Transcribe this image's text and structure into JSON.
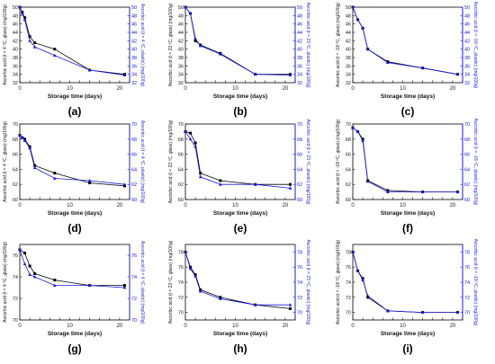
{
  "colors": {
    "glass": "#000000",
    "plastic": "#1a1adb",
    "axis_left": "#000000",
    "axis_right": "#1a1adb"
  },
  "chart_data": [
    {
      "label": "(a)",
      "type": "line",
      "xlabel": "Storage time (days)",
      "ylabel": "Ascorbic acid (t = 4 ºC, glass) (mg/100g)",
      "ylabel_right": "Ascorbic acid (t = 4 ºC, plastic) (mg/100g)",
      "xlim": [
        0,
        22
      ],
      "xticks": [
        0,
        2,
        4,
        6,
        8,
        10,
        12,
        14,
        16,
        18,
        20,
        22
      ],
      "ylim": [
        32,
        50
      ],
      "yticks": [
        32,
        34,
        36,
        38,
        40,
        42,
        44,
        46,
        48,
        50
      ],
      "series": [
        {
          "marker": "square",
          "x": [
            0,
            0.5,
            1,
            2,
            3,
            7,
            14,
            21
          ],
          "y": [
            50,
            48.8,
            47.5,
            43,
            41.5,
            40,
            35,
            34
          ]
        },
        {
          "marker": "triangle",
          "x": [
            0,
            0.5,
            1,
            2,
            3,
            7,
            14,
            21
          ],
          "y": [
            50,
            48.5,
            47,
            42,
            40.5,
            38.5,
            35,
            33.8
          ]
        }
      ]
    },
    {
      "label": "(b)",
      "type": "line",
      "xlabel": "Storage time (days)",
      "ylabel": "Ascorbic acid (t = 23 ºC, glass) (mg/100g)",
      "ylabel_right": "Ascorbic acid (t = 23 ºC, plastic) (mg/100g)",
      "xlim": [
        0,
        22
      ],
      "xticks": [
        0,
        2,
        4,
        6,
        8,
        10,
        12,
        14,
        16,
        18,
        20,
        22
      ],
      "ylim": [
        32,
        50
      ],
      "yticks": [
        32,
        34,
        36,
        38,
        40,
        42,
        44,
        46,
        48,
        50
      ],
      "series": [
        {
          "marker": "square",
          "x": [
            0,
            1,
            2,
            3,
            7,
            14,
            21
          ],
          "y": [
            50,
            48.5,
            42,
            41,
            39,
            34,
            34
          ]
        },
        {
          "marker": "triangle",
          "x": [
            0,
            1,
            2,
            3,
            7,
            14,
            21
          ],
          "y": [
            50,
            48.5,
            42.5,
            40.8,
            38.8,
            34,
            33.8
          ]
        }
      ]
    },
    {
      "label": "(c)",
      "type": "line",
      "xlabel": "Storage time (days)",
      "ylabel": "Ascorbic acid (t = -18 ºC, glass) (mg/100g)",
      "ylabel_right": "Ascorbic acid (t = -18 ºC, plastic) (mg/100g)",
      "xlim": [
        0,
        22
      ],
      "xticks": [
        0,
        2,
        4,
        6,
        8,
        10,
        12,
        14,
        16,
        18,
        20,
        22
      ],
      "ylim": [
        32,
        50
      ],
      "yticks": [
        32,
        34,
        36,
        38,
        40,
        42,
        44,
        46,
        48,
        50
      ],
      "series": [
        {
          "marker": "square",
          "x": [
            0,
            1,
            2,
            3,
            7,
            14,
            21
          ],
          "y": [
            50,
            47,
            45,
            40,
            37,
            35.5,
            34
          ]
        },
        {
          "marker": "triangle",
          "x": [
            0,
            1,
            2,
            3,
            7,
            14,
            21
          ],
          "y": [
            50,
            47,
            45,
            40,
            36.8,
            35.5,
            34
          ]
        }
      ]
    },
    {
      "label": "(d)",
      "type": "line",
      "xlabel": "Storage time (days)",
      "ylabel": "Ascorbic acid (t = 4 ºC, glass) (mg/100g)",
      "ylabel_right": "Ascorbic acid (t = 4 ºC, plastic) (mg/100g)",
      "xlim": [
        0,
        22
      ],
      "xticks": [
        0,
        2,
        4,
        6,
        8,
        10,
        12,
        14,
        16,
        18,
        20,
        22
      ],
      "ylim": [
        60,
        70
      ],
      "yticks": [
        60,
        62,
        64,
        66,
        68,
        70
      ],
      "series": [
        {
          "marker": "square",
          "x": [
            0,
            0.5,
            1,
            2,
            3,
            7,
            14,
            21
          ],
          "y": [
            68.5,
            68.2,
            68,
            67,
            64.5,
            63.5,
            62.2,
            61.8
          ]
        },
        {
          "marker": "triangle",
          "x": [
            0,
            0.5,
            1,
            2,
            3,
            7,
            14,
            21
          ],
          "y": [
            68.5,
            68.2,
            67.8,
            66.8,
            64.2,
            62.8,
            62.5,
            62
          ]
        }
      ]
    },
    {
      "label": "(e)",
      "type": "line",
      "xlabel": "Storage time (days)",
      "ylabel": "Ascorbic acid (t = 23 ºC, glass) (mg/100g)",
      "ylabel_right": "Ascorbic acid (t = 23 ºC, plastic) (mg/100g)",
      "xlim": [
        0,
        22
      ],
      "xticks": [
        0,
        2,
        4,
        6,
        8,
        10,
        12,
        14,
        16,
        18,
        20,
        22
      ],
      "ylim": [
        60,
        70
      ],
      "yticks": [
        60,
        62,
        64,
        66,
        68,
        70
      ],
      "series": [
        {
          "marker": "square",
          "x": [
            0,
            1,
            2,
            3,
            7,
            14,
            21
          ],
          "y": [
            69,
            68.8,
            67.5,
            63.5,
            62.5,
            62,
            62
          ]
        },
        {
          "marker": "triangle",
          "x": [
            0,
            1,
            2,
            3,
            7,
            14,
            21
          ],
          "y": [
            69,
            68,
            67,
            63,
            62,
            62,
            61.5
          ]
        }
      ]
    },
    {
      "label": "(f)",
      "type": "line",
      "xlabel": "Storage time (days)",
      "ylabel": "Ascorbic acid (t = -18 ºC, glass) (mg/100g)",
      "ylabel_right": "Ascorbic acid (t = -18 ºC, plastic) (mg/100g)",
      "xlim": [
        0,
        22
      ],
      "xticks": [
        0,
        2,
        4,
        6,
        8,
        10,
        12,
        14,
        16,
        18,
        20,
        22
      ],
      "ylim": [
        60,
        70
      ],
      "yticks": [
        60,
        62,
        64,
        66,
        68,
        70
      ],
      "series": [
        {
          "marker": "square",
          "x": [
            0,
            1,
            2,
            3,
            7,
            14,
            21
          ],
          "y": [
            69.5,
            69,
            68,
            62.5,
            61.2,
            61,
            61
          ]
        },
        {
          "marker": "triangle",
          "x": [
            0,
            1,
            2,
            3,
            7,
            14,
            21
          ],
          "y": [
            69.5,
            69,
            67.8,
            62.4,
            61,
            61,
            61
          ]
        }
      ]
    },
    {
      "label": "(g)",
      "type": "line",
      "xlabel": "Storage time (days)",
      "ylabel": "Ascorbic acid (t = 4 ºC, glass) (mg/100g)",
      "ylabel_right": "Ascorbic acid (t = 4 ºC, plastic) (mg/100g)",
      "xlim": [
        0,
        22
      ],
      "xticks": [
        0,
        2,
        4,
        6,
        8,
        10,
        12,
        14,
        16,
        18,
        20,
        22
      ],
      "ylim": [
        70,
        77
      ],
      "yticks": [
        70,
        72,
        74,
        76
      ],
      "series": [
        {
          "marker": "square",
          "x": [
            0,
            1,
            2,
            3,
            7,
            14,
            21
          ],
          "y": [
            76.5,
            76.2,
            75,
            74.3,
            73.7,
            73.2,
            73.2
          ]
        },
        {
          "marker": "triangle",
          "x": [
            0,
            1,
            2,
            3,
            7,
            14,
            21
          ],
          "y": [
            76.5,
            75.2,
            74.2,
            74,
            73.2,
            73.2,
            73
          ]
        }
      ]
    },
    {
      "label": "(h)",
      "type": "line",
      "xlabel": "Storage time (days)",
      "ylabel": "Ascorbic acid (t = 23 ºC, glass) (mg/100g)",
      "ylabel_right": "Ascorbic acid (t = 23 ºC, plastic) (mg/100g)",
      "xlim": [
        0,
        22
      ],
      "xticks": [
        0,
        2,
        4,
        6,
        8,
        10,
        12,
        14,
        16,
        18,
        20,
        22
      ],
      "ylim": [
        69,
        79
      ],
      "yticks": [
        70,
        72,
        74,
        76,
        78
      ],
      "series": [
        {
          "marker": "square",
          "x": [
            0,
            1,
            2,
            3,
            7,
            14,
            21
          ],
          "y": [
            78,
            76,
            75,
            73,
            72,
            71,
            70.5
          ]
        },
        {
          "marker": "triangle",
          "x": [
            0,
            1,
            2,
            3,
            7,
            14,
            21
          ],
          "y": [
            78,
            75.8,
            74.8,
            72.8,
            71.8,
            71,
            71
          ]
        }
      ]
    },
    {
      "label": "(i)",
      "type": "line",
      "xlabel": "Storage time (days)",
      "ylabel": "Ascorbic acid (t = -18 ºC, glass) (mg/100g)",
      "ylabel_right": "Ascorbic acid (t = -18 ºC, plastic) (mg/100g)",
      "xlim": [
        0,
        22
      ],
      "xticks": [
        0,
        2,
        4,
        6,
        8,
        10,
        12,
        14,
        16,
        18,
        20,
        22
      ],
      "ylim": [
        69,
        79
      ],
      "yticks": [
        70,
        72,
        74,
        76,
        78
      ],
      "series": [
        {
          "marker": "square",
          "x": [
            0,
            1,
            2,
            3,
            7,
            14,
            21
          ],
          "y": [
            78,
            75.5,
            74.5,
            72,
            70.2,
            70,
            70
          ]
        },
        {
          "marker": "triangle",
          "x": [
            0,
            1,
            2,
            3,
            7,
            14,
            21
          ],
          "y": [
            78,
            75.5,
            74.3,
            72.2,
            70.2,
            70,
            70
          ]
        }
      ]
    }
  ]
}
